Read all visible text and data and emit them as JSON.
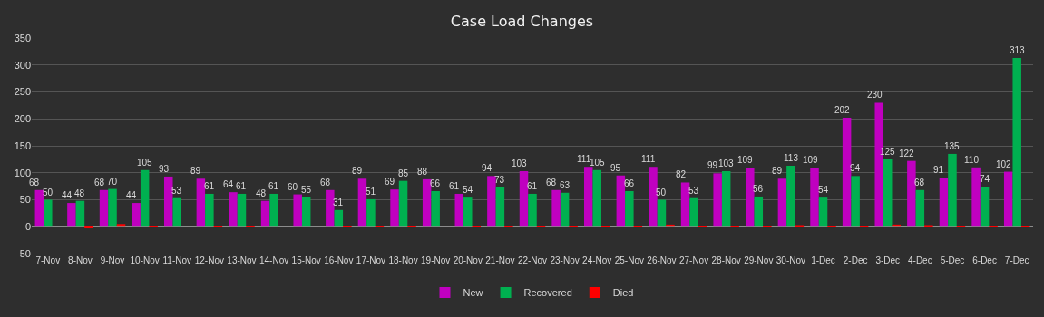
{
  "chart_data": {
    "type": "bar",
    "title": "Case Load Changes",
    "categories": [
      "7-Nov",
      "8-Nov",
      "9-Nov",
      "10-Nov",
      "11-Nov",
      "12-Nov",
      "13-Nov",
      "14-Nov",
      "15-Nov",
      "16-Nov",
      "17-Nov",
      "18-Nov",
      "19-Nov",
      "20-Nov",
      "21-Nov",
      "22-Nov",
      "23-Nov",
      "24-Nov",
      "25-Nov",
      "26-Nov",
      "27-Nov",
      "28-Nov",
      "29-Nov",
      "30-Nov",
      "1-Dec",
      "2-Dec",
      "3-Dec",
      "4-Dec",
      "5-Dec",
      "6-Dec",
      "7-Dec"
    ],
    "series": [
      {
        "name": "New",
        "color": "#c000c0",
        "values": [
          68,
          44,
          68,
          44,
          93,
          89,
          64,
          48,
          60,
          68,
          89,
          69,
          88,
          61,
          94,
          103,
          68,
          111,
          95,
          111,
          82,
          99,
          109,
          89,
          109,
          202,
          230,
          122,
          91,
          110,
          102
        ],
        "value_labels": [
          "68",
          "44",
          "68",
          "44",
          "93",
          "89",
          "64",
          "48",
          "60",
          "68",
          "89",
          "69",
          "88",
          "61",
          "94",
          "103",
          "68",
          "111",
          "95",
          "111",
          "82",
          "99",
          "109",
          "89",
          "109",
          "202",
          "230",
          "122",
          "91",
          "110",
          "102"
        ]
      },
      {
        "name": "Recovered",
        "color": "#00b050",
        "values": [
          50,
          48,
          70,
          105,
          53,
          61,
          61,
          61,
          55,
          31,
          51,
          85,
          66,
          54,
          73,
          61,
          63,
          105,
          66,
          50,
          53,
          103,
          56,
          113,
          54,
          94,
          125,
          68,
          135,
          74,
          313
        ],
        "value_labels": [
          "50",
          "48",
          "70",
          "105",
          "53",
          "61",
          "61",
          "61",
          "55",
          "31",
          "51",
          "85",
          "66",
          "54",
          "73",
          "61",
          "63",
          "105",
          "66",
          "50",
          "53",
          "103",
          "56",
          "113",
          "54",
          "94",
          "125",
          "68",
          "135",
          "74",
          "313"
        ]
      },
      {
        "name": "Died",
        "color": "#ff0000",
        "values": [
          0,
          -3,
          5,
          2,
          0,
          1,
          1,
          0,
          0,
          1,
          2,
          1,
          0,
          2,
          1,
          1,
          2,
          1,
          2,
          4,
          2,
          1,
          1,
          3,
          2,
          1,
          4,
          3,
          1,
          2,
          2
        ]
      }
    ],
    "ylim": [
      -50,
      350
    ],
    "yticks": [
      -50,
      0,
      50,
      100,
      150,
      200,
      250,
      300,
      350
    ],
    "grid": "y",
    "legend": "bottom"
  }
}
